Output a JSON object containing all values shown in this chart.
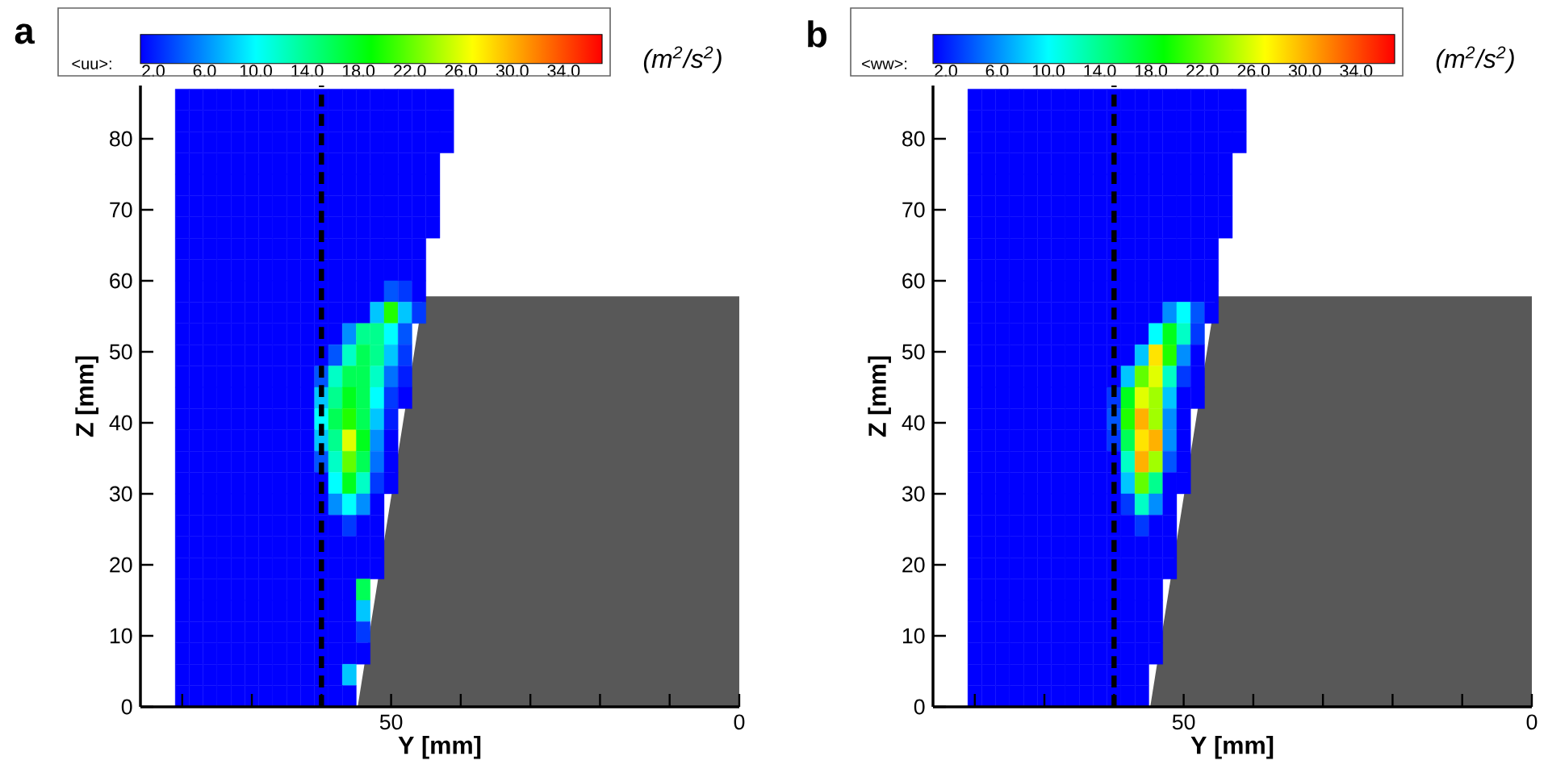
{
  "chart_data": [
    {
      "type": "heatmap",
      "title": "a",
      "clabel": "<uu>:",
      "annotations": [
        "(m$^{2}$/s$^{2}$)"
      ],
      "xlabel": "Y [mm]",
      "ylabel": "Z [mm]",
      "xlim": [
        86,
        0
      ],
      "ylim": [
        0,
        87.5
      ],
      "xticks": [
        {
          "value": 80,
          "label": null
        },
        {
          "value": 70,
          "label": null
        },
        {
          "value": 60,
          "label": null
        },
        50,
        {
          "value": 40,
          "label": null
        },
        {
          "value": 30,
          "label": null
        },
        {
          "value": 20,
          "label": null
        },
        {
          "value": 10,
          "label": null
        },
        0
      ],
      "yticks": [
        0,
        10,
        20,
        30,
        40,
        50,
        60,
        70,
        80
      ],
      "clim": [
        1,
        37
      ],
      "cticks": [
        {
          "value": 2,
          "label": "2.0"
        },
        {
          "value": 6,
          "label": "6.0"
        },
        {
          "value": 10,
          "label": "10.0"
        },
        {
          "value": 14,
          "label": "14.0"
        },
        {
          "value": 18,
          "label": "18.0"
        },
        {
          "value": 22,
          "label": "22.0"
        },
        {
          "value": 26,
          "label": "26.0"
        },
        {
          "value": 30,
          "label": "30.0"
        },
        {
          "value": 34,
          "label": "34.0"
        }
      ],
      "ref_lines": [
        {
          "axis": "x",
          "value": 60,
          "color": "#000000",
          "line_style": "dashed"
        }
      ],
      "x": [
        80,
        78,
        76,
        74,
        72,
        70,
        68,
        66,
        64,
        62,
        60,
        58,
        56,
        54,
        52,
        50,
        48,
        46,
        44,
        42
      ],
      "y": [
        85.5,
        82.5,
        79.5,
        76.5,
        73.5,
        70.5,
        67.5,
        64.5,
        61.5,
        58.5,
        55.5,
        52.5,
        49.5,
        46.5,
        43.5,
        40.5,
        37.5,
        34.5,
        31.5,
        28.5,
        25.5,
        22.5,
        19.5,
        16.5,
        13.5,
        10.5,
        7.5,
        4.5,
        1.5
      ],
      "cells": [
        [
          1,
          1,
          1,
          1,
          1,
          1,
          1,
          1,
          1,
          1,
          1,
          1,
          1,
          1,
          1,
          1,
          1,
          1,
          1,
          1
        ],
        [
          1,
          1,
          1,
          1,
          1,
          1,
          1,
          1,
          1,
          1,
          1,
          1,
          1,
          1,
          1,
          1,
          1,
          1,
          1,
          1
        ],
        [
          1,
          1,
          1,
          1,
          1,
          1,
          1,
          1,
          1,
          1,
          1,
          1,
          1,
          1,
          1,
          1,
          1,
          1,
          1,
          1
        ],
        [
          1,
          1,
          1,
          1,
          1,
          1,
          1,
          1,
          1,
          1,
          1,
          1,
          1,
          1,
          1,
          1,
          1,
          1,
          1,
          null
        ],
        [
          1,
          1,
          1,
          1,
          1,
          1,
          1,
          1,
          1,
          1,
          1,
          1,
          1,
          1,
          1,
          1,
          1,
          1,
          1,
          null
        ],
        [
          1,
          1,
          1,
          1,
          1,
          1,
          1,
          1,
          1,
          1,
          1,
          1,
          1,
          1,
          1,
          1,
          1,
          1,
          1,
          null
        ],
        [
          1,
          1,
          1,
          1,
          1,
          1,
          1,
          1,
          1,
          1,
          1,
          1,
          1,
          1,
          1,
          1,
          1,
          1,
          1,
          null
        ],
        [
          1,
          1,
          1,
          1,
          1,
          1,
          1,
          1,
          1,
          1,
          1,
          1,
          1,
          1,
          1,
          1,
          1,
          1,
          null,
          null
        ],
        [
          1,
          1,
          1,
          1,
          1,
          1,
          1,
          1,
          1,
          1,
          1,
          1,
          1,
          1,
          1,
          1,
          1,
          1,
          null,
          null
        ],
        [
          1,
          1,
          1,
          1,
          1,
          1,
          1,
          1,
          1,
          1,
          1,
          1,
          1,
          1,
          1,
          4,
          3,
          1,
          null,
          null
        ],
        [
          1,
          1,
          1,
          1,
          1,
          1,
          1,
          1,
          1,
          1,
          1,
          1,
          1,
          1,
          8,
          20,
          8,
          3,
          null,
          null
        ],
        [
          1,
          1,
          1,
          1,
          1,
          1,
          1,
          1,
          1,
          1,
          1,
          1,
          6,
          14,
          14,
          10,
          4,
          null,
          null,
          null
        ],
        [
          1,
          1,
          1,
          1,
          1,
          1,
          1,
          1,
          1,
          1,
          1,
          4,
          12,
          16,
          14,
          8,
          3,
          null,
          null,
          null
        ],
        [
          1,
          1,
          1,
          1,
          1,
          1,
          1,
          1,
          1,
          1,
          4,
          12,
          16,
          16,
          12,
          5,
          2,
          null,
          null,
          null
        ],
        [
          1,
          1,
          1,
          1,
          1,
          1,
          1,
          1,
          1,
          1,
          8,
          14,
          18,
          16,
          10,
          3,
          1,
          null,
          null,
          null
        ],
        [
          1,
          1,
          1,
          1,
          1,
          1,
          1,
          1,
          1,
          1,
          10,
          16,
          20,
          16,
          8,
          2,
          null,
          null,
          null,
          null
        ],
        [
          1,
          1,
          1,
          1,
          1,
          1,
          1,
          1,
          1,
          1,
          8,
          14,
          26,
          18,
          6,
          1,
          null,
          null,
          null,
          null
        ],
        [
          1,
          1,
          1,
          1,
          1,
          1,
          1,
          1,
          1,
          1,
          4,
          12,
          22,
          16,
          5,
          1,
          null,
          null,
          null,
          null
        ],
        [
          1,
          1,
          1,
          1,
          1,
          1,
          1,
          1,
          1,
          1,
          1,
          10,
          18,
          12,
          3,
          1,
          null,
          null,
          null,
          null
        ],
        [
          1,
          1,
          1,
          1,
          1,
          1,
          1,
          1,
          1,
          1,
          1,
          6,
          10,
          6,
          1,
          null,
          null,
          null,
          null,
          null
        ],
        [
          1,
          1,
          1,
          1,
          1,
          1,
          1,
          1,
          1,
          1,
          1,
          1,
          3,
          1,
          1,
          null,
          null,
          null,
          null,
          null
        ],
        [
          1,
          1,
          1,
          1,
          1,
          1,
          1,
          1,
          1,
          1,
          1,
          1,
          1,
          1,
          1,
          null,
          null,
          null,
          null,
          null
        ],
        [
          1,
          1,
          1,
          1,
          1,
          1,
          1,
          1,
          1,
          1,
          1,
          1,
          1,
          1,
          1,
          null,
          null,
          null,
          null,
          null
        ],
        [
          1,
          1,
          1,
          1,
          1,
          1,
          1,
          1,
          1,
          1,
          1,
          1,
          1,
          16,
          null,
          null,
          null,
          null,
          null,
          null
        ],
        [
          1,
          1,
          1,
          1,
          1,
          1,
          1,
          1,
          1,
          1,
          1,
          1,
          1,
          8,
          null,
          null,
          null,
          null,
          null,
          null
        ],
        [
          1,
          1,
          1,
          1,
          1,
          1,
          1,
          1,
          1,
          1,
          1,
          1,
          1,
          3,
          null,
          null,
          null,
          null,
          null,
          null
        ],
        [
          1,
          1,
          1,
          1,
          1,
          1,
          1,
          1,
          1,
          1,
          1,
          1,
          1,
          1,
          null,
          null,
          null,
          null,
          null,
          null
        ],
        [
          1,
          1,
          1,
          1,
          1,
          1,
          1,
          1,
          1,
          1,
          1,
          1,
          8,
          null,
          null,
          null,
          null,
          null,
          null,
          null
        ],
        [
          1,
          1,
          1,
          1,
          1,
          1,
          1,
          1,
          1,
          1,
          1,
          1,
          1,
          null,
          null,
          null,
          null,
          null,
          null,
          null
        ]
      ]
    },
    {
      "type": "heatmap",
      "title": "b",
      "clabel": "<ww>:",
      "annotations": [
        "(m$^{2}$/s$^{2}$)"
      ],
      "xlabel": "Y [mm]",
      "ylabel": "Z [mm]",
      "xlim": [
        86,
        0
      ],
      "ylim": [
        0,
        87.5
      ],
      "xticks": [
        {
          "value": 80,
          "label": null
        },
        {
          "value": 70,
          "label": null
        },
        {
          "value": 60,
          "label": null
        },
        50,
        {
          "value": 40,
          "label": null
        },
        {
          "value": 30,
          "label": null
        },
        {
          "value": 20,
          "label": null
        },
        {
          "value": 10,
          "label": null
        },
        0
      ],
      "yticks": [
        0,
        10,
        20,
        30,
        40,
        50,
        60,
        70,
        80
      ],
      "clim": [
        1,
        37
      ],
      "cticks": [
        {
          "value": 2,
          "label": "2.0"
        },
        {
          "value": 6,
          "label": "6.0"
        },
        {
          "value": 10,
          "label": "10.0"
        },
        {
          "value": 14,
          "label": "14.0"
        },
        {
          "value": 18,
          "label": "18.0"
        },
        {
          "value": 22,
          "label": "22.0"
        },
        {
          "value": 26,
          "label": "26.0"
        },
        {
          "value": 30,
          "label": "30.0"
        },
        {
          "value": 34,
          "label": "34.0"
        }
      ],
      "ref_lines": [
        {
          "axis": "x",
          "value": 60,
          "color": "#000000",
          "line_style": "dashed"
        }
      ],
      "x": [
        80,
        78,
        76,
        74,
        72,
        70,
        68,
        66,
        64,
        62,
        60,
        58,
        56,
        54,
        52,
        50,
        48,
        46,
        44,
        42
      ],
      "y": [
        85.5,
        82.5,
        79.5,
        76.5,
        73.5,
        70.5,
        67.5,
        64.5,
        61.5,
        58.5,
        55.5,
        52.5,
        49.5,
        46.5,
        43.5,
        40.5,
        37.5,
        34.5,
        31.5,
        28.5,
        25.5,
        22.5,
        19.5,
        16.5,
        13.5,
        10.5,
        7.5,
        4.5,
        1.5
      ],
      "cells": [
        [
          1,
          1,
          1,
          1,
          1,
          1,
          1,
          1,
          1,
          1,
          1,
          1,
          1,
          1,
          1,
          1,
          1,
          1,
          1,
          1
        ],
        [
          1,
          1,
          1,
          1,
          1,
          1,
          1,
          1,
          1,
          1,
          1,
          1,
          1,
          1,
          1,
          1,
          1,
          1,
          1,
          1
        ],
        [
          1,
          1,
          1,
          1,
          1,
          1,
          1,
          1,
          1,
          1,
          1,
          1,
          1,
          1,
          1,
          1,
          1,
          1,
          1,
          1
        ],
        [
          1,
          1,
          1,
          1,
          1,
          1,
          1,
          1,
          1,
          1,
          1,
          1,
          1,
          1,
          1,
          1,
          1,
          1,
          1,
          null
        ],
        [
          1,
          1,
          1,
          1,
          1,
          1,
          1,
          1,
          1,
          1,
          1,
          1,
          1,
          1,
          1,
          1,
          1,
          1,
          1,
          null
        ],
        [
          1,
          1,
          1,
          1,
          1,
          1,
          1,
          1,
          1,
          1,
          1,
          1,
          1,
          1,
          1,
          1,
          1,
          1,
          1,
          null
        ],
        [
          1,
          1,
          1,
          1,
          1,
          1,
          1,
          1,
          1,
          1,
          1,
          1,
          1,
          1,
          1,
          1,
          1,
          1,
          1,
          null
        ],
        [
          1,
          1,
          1,
          1,
          1,
          1,
          1,
          1,
          1,
          1,
          1,
          1,
          1,
          1,
          1,
          1,
          1,
          1,
          null,
          null
        ],
        [
          1,
          1,
          1,
          1,
          1,
          1,
          1,
          1,
          1,
          1,
          1,
          1,
          1,
          1,
          1,
          1,
          1,
          1,
          null,
          null
        ],
        [
          1,
          1,
          1,
          1,
          1,
          1,
          1,
          1,
          1,
          1,
          1,
          1,
          1,
          1,
          1,
          1,
          1,
          1,
          null,
          null
        ],
        [
          1,
          1,
          1,
          1,
          1,
          1,
          1,
          1,
          1,
          1,
          1,
          1,
          1,
          1,
          6,
          10,
          4,
          1,
          null,
          null
        ],
        [
          1,
          1,
          1,
          1,
          1,
          1,
          1,
          1,
          1,
          1,
          1,
          1,
          1,
          10,
          18,
          12,
          3,
          null,
          null,
          null
        ],
        [
          1,
          1,
          1,
          1,
          1,
          1,
          1,
          1,
          1,
          1,
          1,
          1,
          8,
          28,
          20,
          6,
          1,
          null,
          null,
          null
        ],
        [
          1,
          1,
          1,
          1,
          1,
          1,
          1,
          1,
          1,
          1,
          1,
          8,
          22,
          26,
          12,
          3,
          1,
          null,
          null,
          null
        ],
        [
          1,
          1,
          1,
          1,
          1,
          1,
          1,
          1,
          1,
          1,
          3,
          18,
          26,
          24,
          8,
          1,
          1,
          null,
          null,
          null
        ],
        [
          1,
          1,
          1,
          1,
          1,
          1,
          1,
          1,
          1,
          1,
          4,
          20,
          30,
          24,
          6,
          1,
          null,
          null,
          null,
          null
        ],
        [
          1,
          1,
          1,
          1,
          1,
          1,
          1,
          1,
          1,
          1,
          3,
          16,
          28,
          30,
          6,
          1,
          null,
          null,
          null,
          null
        ],
        [
          1,
          1,
          1,
          1,
          1,
          1,
          1,
          1,
          1,
          1,
          1,
          12,
          30,
          24,
          4,
          1,
          null,
          null,
          null,
          null
        ],
        [
          1,
          1,
          1,
          1,
          1,
          1,
          1,
          1,
          1,
          1,
          1,
          8,
          22,
          14,
          1,
          1,
          null,
          null,
          null,
          null
        ],
        [
          1,
          1,
          1,
          1,
          1,
          1,
          1,
          1,
          1,
          1,
          1,
          3,
          12,
          6,
          1,
          null,
          null,
          null,
          null,
          null
        ],
        [
          1,
          1,
          1,
          1,
          1,
          1,
          1,
          1,
          1,
          1,
          1,
          1,
          3,
          1,
          1,
          null,
          null,
          null,
          null,
          null
        ],
        [
          1,
          1,
          1,
          1,
          1,
          1,
          1,
          1,
          1,
          1,
          1,
          1,
          1,
          1,
          1,
          null,
          null,
          null,
          null,
          null
        ],
        [
          1,
          1,
          1,
          1,
          1,
          1,
          1,
          1,
          1,
          1,
          1,
          1,
          1,
          1,
          1,
          null,
          null,
          null,
          null,
          null
        ],
        [
          1,
          1,
          1,
          1,
          1,
          1,
          1,
          1,
          1,
          1,
          1,
          1,
          1,
          1,
          null,
          null,
          null,
          null,
          null,
          null
        ],
        [
          1,
          1,
          1,
          1,
          1,
          1,
          1,
          1,
          1,
          1,
          1,
          1,
          1,
          1,
          null,
          null,
          null,
          null,
          null,
          null
        ],
        [
          1,
          1,
          1,
          1,
          1,
          1,
          1,
          1,
          1,
          1,
          1,
          1,
          1,
          1,
          null,
          null,
          null,
          null,
          null,
          null
        ],
        [
          1,
          1,
          1,
          1,
          1,
          1,
          1,
          1,
          1,
          1,
          1,
          1,
          1,
          1,
          null,
          null,
          null,
          null,
          null,
          null
        ],
        [
          1,
          1,
          1,
          1,
          1,
          1,
          1,
          1,
          1,
          1,
          1,
          1,
          1,
          null,
          null,
          null,
          null,
          null,
          null,
          null
        ],
        [
          1,
          1,
          1,
          1,
          1,
          1,
          1,
          1,
          1,
          1,
          1,
          1,
          1,
          null,
          null,
          null,
          null,
          null,
          null,
          null
        ]
      ]
    }
  ]
}
